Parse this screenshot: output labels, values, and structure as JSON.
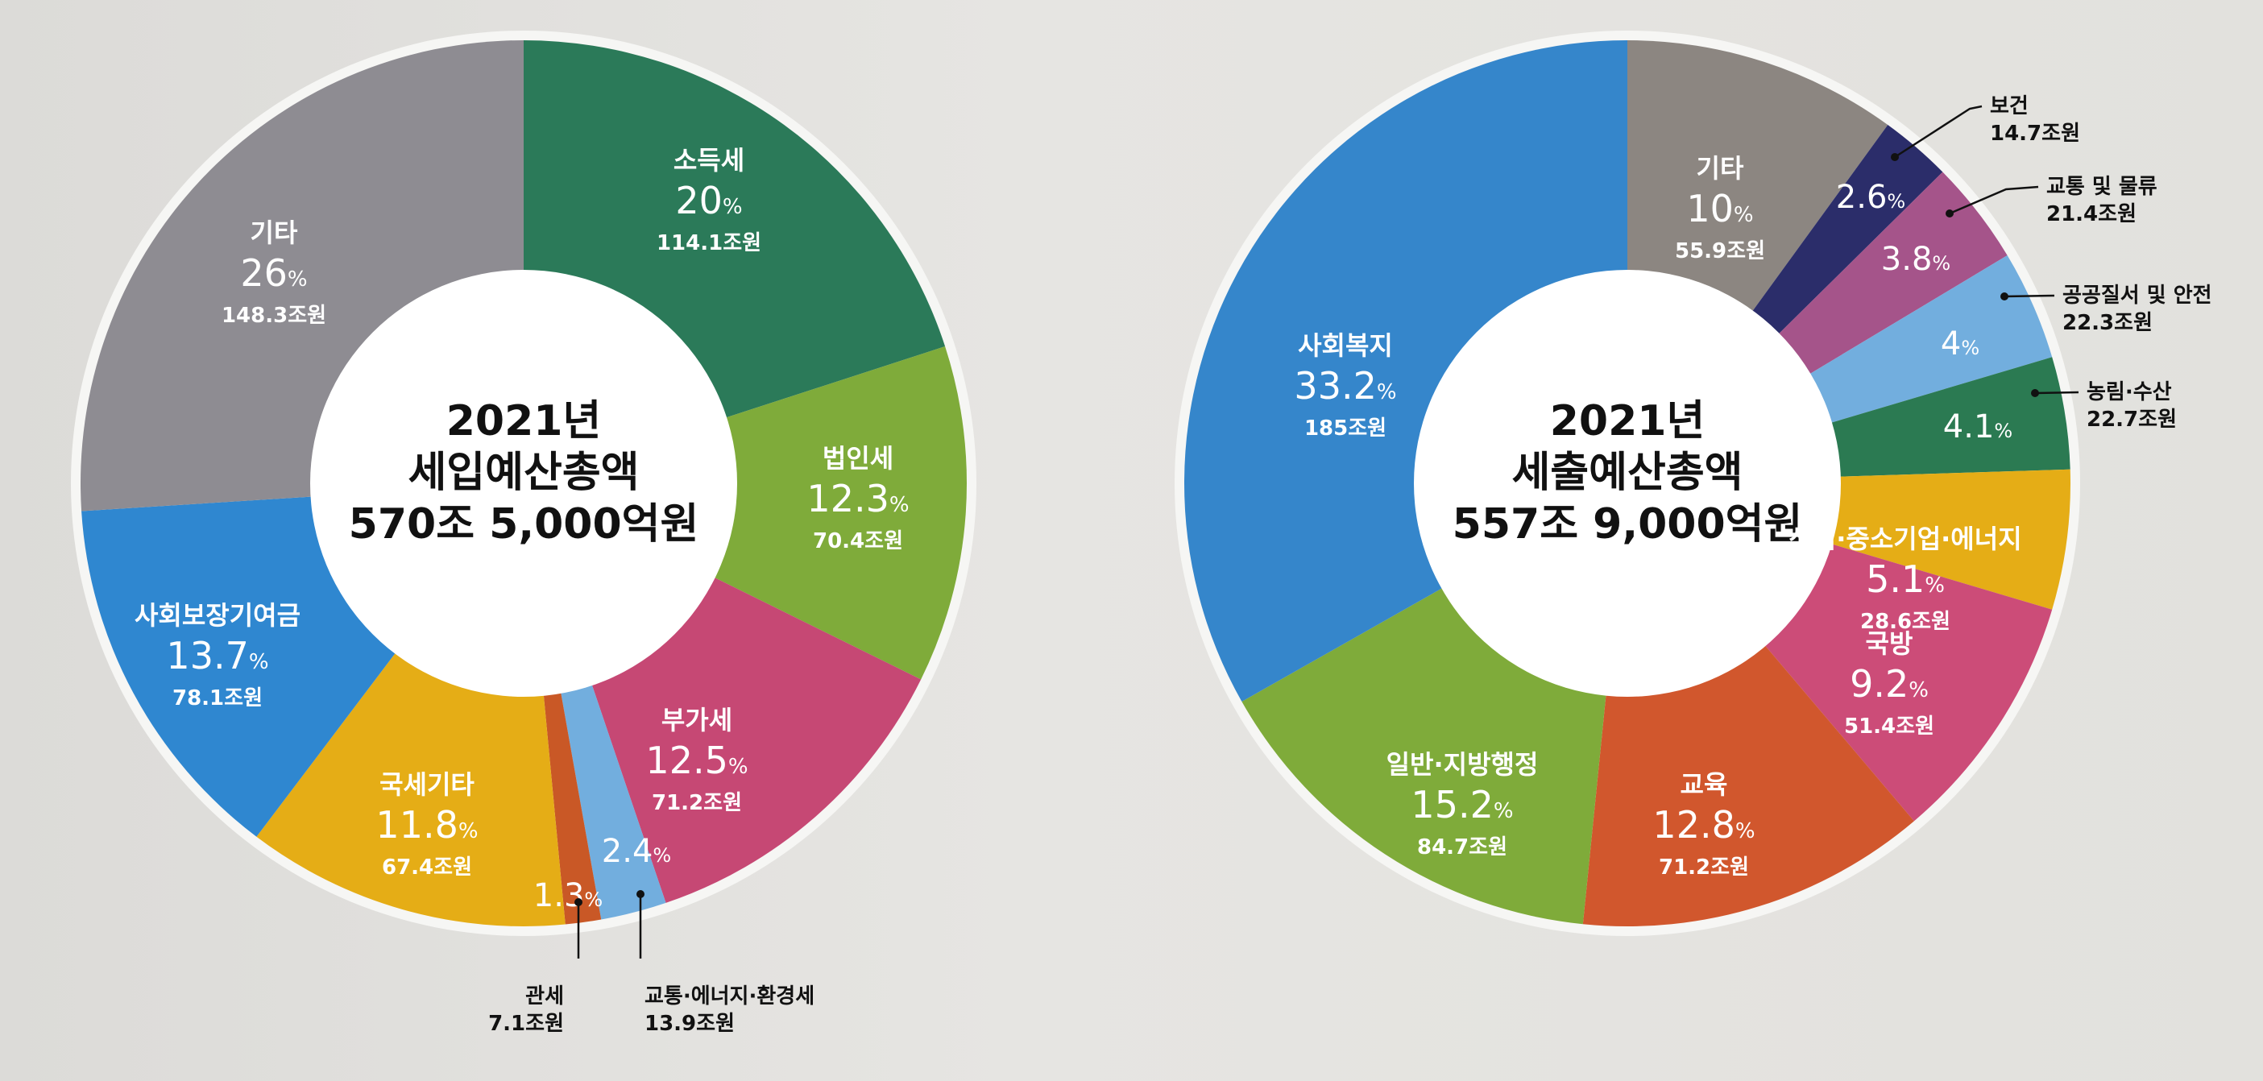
{
  "colors": {
    "background": "#e3e2df",
    "ring": "#f6f6f4",
    "center": "#ffffff",
    "dark_text": "#111111",
    "light_text": "#ffffff"
  },
  "chart_data": [
    {
      "type": "pie",
      "center_lines": [
        "2021년",
        "세입예산총액",
        "570조 5,000억원"
      ],
      "total": "570조 5,000억원",
      "unit": "조원",
      "slices": [
        {
          "name": "소득세",
          "percent": 20,
          "pct_text": "20",
          "value": 114.1,
          "value_text": "114.1조원",
          "color": "#2b7a59",
          "label_pos": "inside"
        },
        {
          "name": "법인세",
          "percent": 12.3,
          "pct_text": "12.3",
          "value": 70.4,
          "value_text": "70.4조원",
          "color": "#7fab3a",
          "label_pos": "inside"
        },
        {
          "name": "부가세",
          "percent": 12.5,
          "pct_text": "12.5",
          "value": 71.2,
          "value_text": "71.2조원",
          "color": "#c64874",
          "label_pos": "inside"
        },
        {
          "name": "교통·에너지·환경세",
          "percent": 2.4,
          "pct_text": "2.4",
          "value": 13.9,
          "value_text": "13.9조원",
          "color": "#72aede",
          "label_pos": "outside"
        },
        {
          "name": "관세",
          "percent": 1.3,
          "pct_text": "1.3",
          "value": 7.1,
          "value_text": "7.1조원",
          "color": "#c95826",
          "label_pos": "outside"
        },
        {
          "name": "국세기타",
          "percent": 11.8,
          "pct_text": "11.8",
          "value": 67.4,
          "value_text": "67.4조원",
          "color": "#e5ad16",
          "label_pos": "inside"
        },
        {
          "name": "사회보장기여금",
          "percent": 13.7,
          "pct_text": "13.7",
          "value": 78.1,
          "value_text": "78.1조원",
          "color": "#2f87d0",
          "label_pos": "inside"
        },
        {
          "name": "기타",
          "percent": 26,
          "pct_text": "26",
          "value": 148.3,
          "value_text": "148.3조원",
          "color": "#8e8c92",
          "label_pos": "inside"
        }
      ]
    },
    {
      "type": "pie",
      "center_lines": [
        "2021년",
        "세출예산총액",
        "557조 9,000억원"
      ],
      "total": "557조 9,000억원",
      "unit": "조원",
      "slices": [
        {
          "name": "기타",
          "percent": 10,
          "pct_text": "10",
          "value": 55.9,
          "value_text": "55.9조원",
          "color": "#8c8681",
          "label_pos": "inside"
        },
        {
          "name": "보건",
          "percent": 2.6,
          "pct_text": "2.6",
          "value": 14.7,
          "value_text": "14.7조원",
          "color": "#2b2d6a",
          "label_pos": "outside"
        },
        {
          "name": "교통 및 물류",
          "percent": 3.8,
          "pct_text": "3.8",
          "value": 21.4,
          "value_text": "21.4조원",
          "color": "#a5548a",
          "label_pos": "outside"
        },
        {
          "name": "공공질서 및 안전",
          "percent": 4,
          "pct_text": "4",
          "value": 22.3,
          "value_text": "22.3조원",
          "color": "#72aede",
          "label_pos": "outside"
        },
        {
          "name": "농림·수산",
          "percent": 4.1,
          "pct_text": "4.1",
          "value": 22.7,
          "value_text": "22.7조원",
          "color": "#2b7a52",
          "label_pos": "outside"
        },
        {
          "name": "산업·중소기업·에너지",
          "percent": 5.1,
          "pct_text": "5.1",
          "value": 28.6,
          "value_text": "28.6조원",
          "color": "#e5ad16",
          "label_pos": "inside"
        },
        {
          "name": "국방",
          "percent": 9.2,
          "pct_text": "9.2",
          "value": 51.4,
          "value_text": "51.4조원",
          "color": "#cc4c78",
          "label_pos": "inside"
        },
        {
          "name": "교육",
          "percent": 12.8,
          "pct_text": "12.8",
          "value": 71.2,
          "value_text": "71.2조원",
          "color": "#d1572d",
          "label_pos": "inside"
        },
        {
          "name": "일반·지방행정",
          "percent": 15.2,
          "pct_text": "15.2",
          "value": 84.7,
          "value_text": "84.7조원",
          "color": "#7fab3a",
          "label_pos": "inside"
        },
        {
          "name": "사회복지",
          "percent": 33.2,
          "pct_text": "33.2",
          "value": 185,
          "value_text": "185조원",
          "color": "#3586cb",
          "label_pos": "inside"
        }
      ]
    }
  ]
}
